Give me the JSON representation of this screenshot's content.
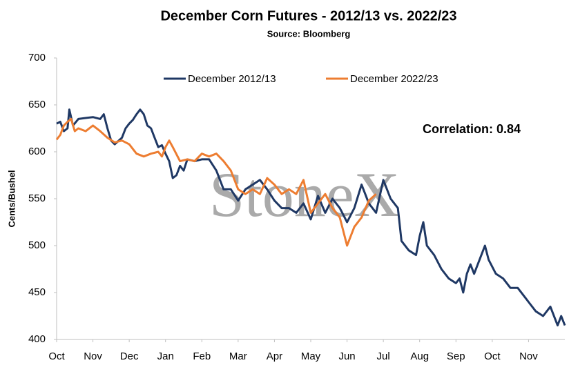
{
  "chart_data": {
    "type": "line",
    "title": "December Corn Futures - 2012/13 vs. 2022/23",
    "subtitle": "Source: Bloomberg",
    "y_label": "Cents/Bushel",
    "annotation": "Correlation: 0.84",
    "watermark": "StoneX",
    "xlim": [
      0,
      14
    ],
    "xticks": [
      {
        "value": 0,
        "label": "Oct"
      },
      {
        "value": 1,
        "label": "Nov"
      },
      {
        "value": 2,
        "label": "Dec"
      },
      {
        "value": 3,
        "label": "Jan"
      },
      {
        "value": 4,
        "label": "Feb"
      },
      {
        "value": 5,
        "label": "Mar"
      },
      {
        "value": 6,
        "label": "Apr"
      },
      {
        "value": 7,
        "label": "May"
      },
      {
        "value": 8,
        "label": "Jun"
      },
      {
        "value": 9,
        "label": "Jul"
      },
      {
        "value": 10,
        "label": "Aug"
      },
      {
        "value": 11,
        "label": "Sep"
      },
      {
        "value": 12,
        "label": "Oct"
      },
      {
        "value": 13,
        "label": "Nov"
      }
    ],
    "ylim": [
      400,
      700
    ],
    "yticks": [
      400,
      450,
      500,
      550,
      600,
      650,
      700
    ],
    "grid": false,
    "legend": "top",
    "series": [
      {
        "name": "December 2012/13",
        "color": "#1f3864",
        "x": [
          0,
          0.1,
          0.2,
          0.3,
          0.35,
          0.45,
          0.6,
          0.8,
          1.0,
          1.2,
          1.3,
          1.4,
          1.5,
          1.6,
          1.8,
          1.9,
          2.0,
          2.1,
          2.2,
          2.3,
          2.4,
          2.5,
          2.6,
          2.7,
          2.8,
          2.9,
          3.0,
          3.1,
          3.2,
          3.3,
          3.4,
          3.5,
          3.6,
          3.8,
          4.0,
          4.2,
          4.4,
          4.6,
          4.8,
          5.0,
          5.2,
          5.4,
          5.6,
          5.8,
          6.0,
          6.2,
          6.4,
          6.6,
          6.8,
          7.0,
          7.2,
          7.4,
          7.6,
          7.8,
          8.0,
          8.2,
          8.4,
          8.5,
          8.6,
          8.7,
          8.8,
          9.0,
          9.2,
          9.4,
          9.5,
          9.7,
          9.9,
          10.0,
          10.1,
          10.2,
          10.4,
          10.6,
          10.8,
          11.0,
          11.1,
          11.2,
          11.3,
          11.4,
          11.5,
          11.7,
          11.8,
          11.9,
          12.1,
          12.3,
          12.5,
          12.7,
          12.9,
          13.0,
          13.2,
          13.4,
          13.6,
          13.8,
          13.9,
          14.0
        ],
        "values": [
          630,
          632,
          622,
          625,
          645,
          628,
          635,
          636,
          637,
          635,
          640,
          625,
          612,
          608,
          615,
          625,
          630,
          634,
          640,
          645,
          640,
          628,
          625,
          615,
          605,
          607,
          598,
          590,
          572,
          575,
          585,
          580,
          592,
          590,
          592,
          592,
          580,
          560,
          560,
          548,
          560,
          565,
          570,
          560,
          548,
          540,
          540,
          535,
          545,
          528,
          553,
          535,
          550,
          540,
          525,
          540,
          565,
          555,
          545,
          540,
          535,
          570,
          550,
          540,
          505,
          495,
          490,
          510,
          525,
          500,
          490,
          475,
          465,
          460,
          465,
          450,
          470,
          480,
          470,
          490,
          500,
          485,
          470,
          465,
          455,
          455,
          445,
          440,
          430,
          425,
          435,
          415,
          425,
          415
        ]
      },
      {
        "name": "December 2022/23",
        "color": "#ed7d31",
        "x": [
          0,
          0.1,
          0.2,
          0.3,
          0.4,
          0.5,
          0.6,
          0.8,
          1.0,
          1.2,
          1.4,
          1.6,
          1.8,
          2.0,
          2.2,
          2.4,
          2.6,
          2.8,
          2.9,
          3.0,
          3.1,
          3.2,
          3.4,
          3.6,
          3.8,
          4.0,
          4.2,
          4.4,
          4.6,
          4.8,
          5.0,
          5.2,
          5.4,
          5.6,
          5.8,
          6.0,
          6.2,
          6.4,
          6.6,
          6.8,
          7.0,
          7.2,
          7.4,
          7.6,
          7.8,
          8.0,
          8.2,
          8.4,
          8.6,
          8.8
        ],
        "values": [
          613,
          618,
          628,
          632,
          635,
          622,
          625,
          622,
          628,
          622,
          615,
          610,
          612,
          608,
          598,
          595,
          598,
          600,
          595,
          605,
          612,
          605,
          590,
          592,
          590,
          598,
          595,
          598,
          590,
          580,
          560,
          555,
          560,
          555,
          572,
          565,
          555,
          560,
          555,
          570,
          535,
          545,
          555,
          540,
          530,
          500,
          520,
          530,
          548,
          555
        ]
      }
    ]
  }
}
